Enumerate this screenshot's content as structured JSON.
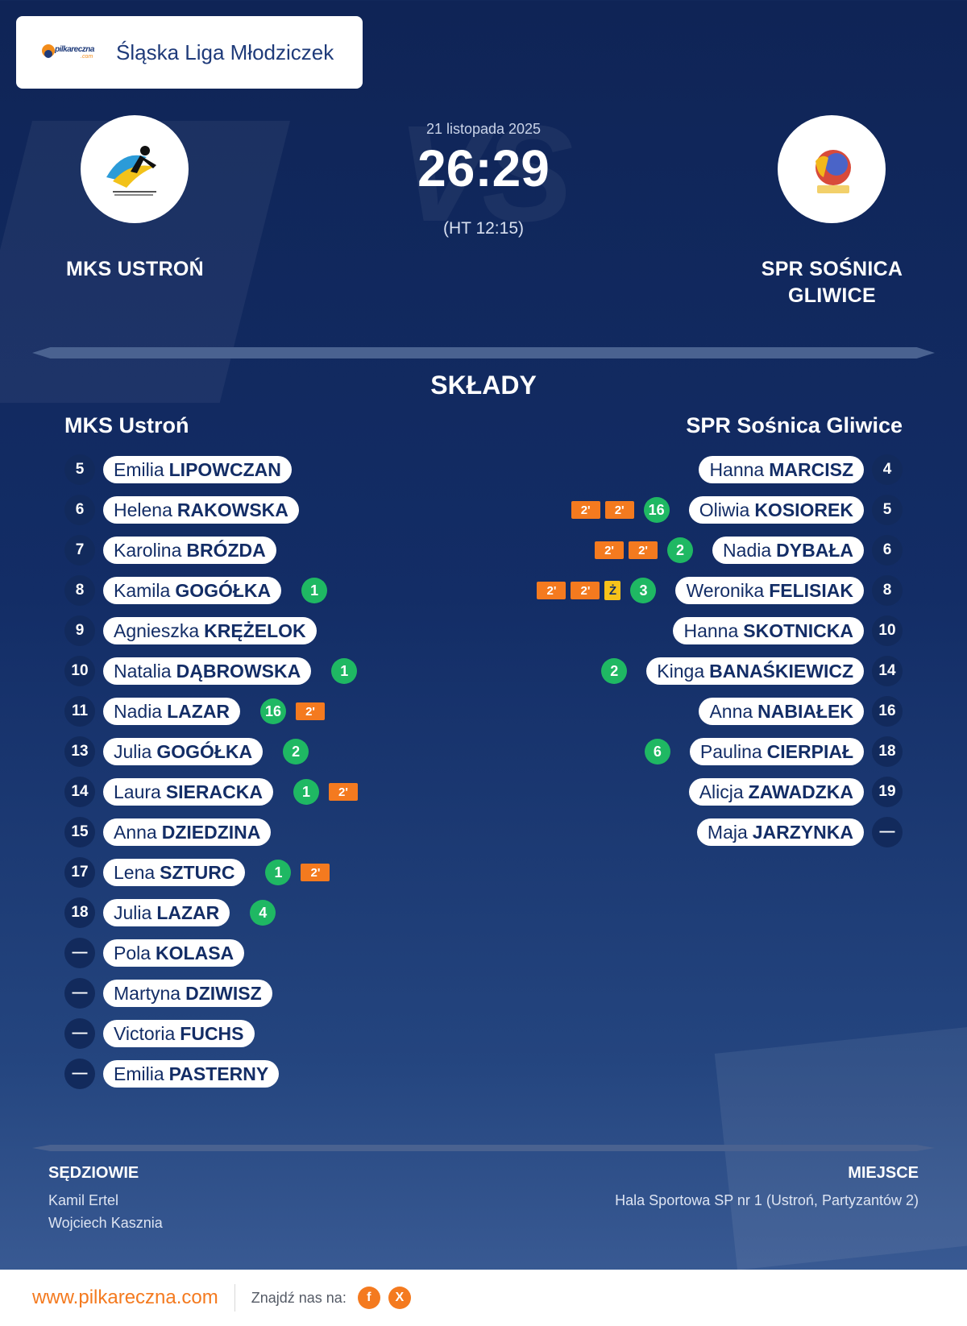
{
  "header": {
    "league_name": "Śląska Liga Młodziczek",
    "brand_text": "pilkareczna",
    "brand_suffix": ".com"
  },
  "match": {
    "date": "21 listopada 2025",
    "score": "26:29",
    "halftime": "(HT 12:15)",
    "vs_watermark": "VS",
    "home_team": "MKS USTROŃ",
    "away_team": "SPR SOŚNICA GLIWICE"
  },
  "lineups": {
    "title": "SKŁADY",
    "home_name": "MKS Ustroń",
    "away_name": "SPR Sośnica Gliwice",
    "home": [
      {
        "num": "5",
        "first": "Emilia",
        "last": "LIPOWCZAN",
        "goals": "",
        "yellow": "",
        "pens": []
      },
      {
        "num": "6",
        "first": "Helena",
        "last": "RAKOWSKA",
        "goals": "",
        "yellow": "",
        "pens": []
      },
      {
        "num": "7",
        "first": "Karolina",
        "last": "BRÓZDA",
        "goals": "",
        "yellow": "",
        "pens": []
      },
      {
        "num": "8",
        "first": "Kamila",
        "last": "GOGÓŁKA",
        "goals": "1",
        "yellow": "",
        "pens": []
      },
      {
        "num": "9",
        "first": "Agnieszka",
        "last": "KRĘŻELOK",
        "goals": "",
        "yellow": "",
        "pens": []
      },
      {
        "num": "10",
        "first": "Natalia",
        "last": "DĄBROWSKA",
        "goals": "1",
        "yellow": "",
        "pens": []
      },
      {
        "num": "11",
        "first": "Nadia",
        "last": "LAZAR",
        "goals": "16",
        "yellow": "",
        "pens": [
          "2'"
        ]
      },
      {
        "num": "13",
        "first": "Julia",
        "last": "GOGÓŁKA",
        "goals": "2",
        "yellow": "",
        "pens": []
      },
      {
        "num": "14",
        "first": "Laura",
        "last": "SIERACKA",
        "goals": "1",
        "yellow": "",
        "pens": [
          "2'"
        ]
      },
      {
        "num": "15",
        "first": "Anna",
        "last": "DZIEDZINA",
        "goals": "",
        "yellow": "",
        "pens": []
      },
      {
        "num": "17",
        "first": "Lena",
        "last": "SZTURC",
        "goals": "1",
        "yellow": "",
        "pens": [
          "2'"
        ]
      },
      {
        "num": "18",
        "first": "Julia",
        "last": "LAZAR",
        "goals": "4",
        "yellow": "",
        "pens": []
      },
      {
        "num": "—",
        "first": "Pola",
        "last": "KOLASA",
        "goals": "",
        "yellow": "",
        "pens": []
      },
      {
        "num": "—",
        "first": "Martyna",
        "last": "DZIWISZ",
        "goals": "",
        "yellow": "",
        "pens": []
      },
      {
        "num": "—",
        "first": "Victoria",
        "last": "FUCHS",
        "goals": "",
        "yellow": "",
        "pens": []
      },
      {
        "num": "—",
        "first": "Emilia",
        "last": "PASTERNY",
        "goals": "",
        "yellow": "",
        "pens": []
      }
    ],
    "away": [
      {
        "num": "4",
        "first": "Hanna",
        "last": "MARCISZ",
        "goals": "",
        "yellow": "",
        "pens": []
      },
      {
        "num": "5",
        "first": "Oliwia",
        "last": "KOSIOREK",
        "goals": "16",
        "yellow": "",
        "pens": [
          "2'",
          "2'"
        ]
      },
      {
        "num": "6",
        "first": "Nadia",
        "last": "DYBAŁA",
        "goals": "2",
        "yellow": "",
        "pens": [
          "2'",
          "2'"
        ]
      },
      {
        "num": "8",
        "first": "Weronika",
        "last": "FELISIAK",
        "goals": "3",
        "yellow": "Ż",
        "pens": [
          "2'",
          "2'"
        ]
      },
      {
        "num": "10",
        "first": "Hanna",
        "last": "SKOTNICKA",
        "goals": "",
        "yellow": "",
        "pens": []
      },
      {
        "num": "14",
        "first": "Kinga",
        "last": "BANAŚKIEWICZ",
        "goals": "2",
        "yellow": "",
        "pens": []
      },
      {
        "num": "16",
        "first": "Anna",
        "last": "NABIAŁEK",
        "goals": "",
        "yellow": "",
        "pens": []
      },
      {
        "num": "18",
        "first": "Paulina",
        "last": "CIERPIAŁ",
        "goals": "6",
        "yellow": "",
        "pens": []
      },
      {
        "num": "19",
        "first": "Alicja",
        "last": "ZAWADZKA",
        "goals": "",
        "yellow": "",
        "pens": []
      },
      {
        "num": "—",
        "first": "Maja",
        "last": "JARZYNKA",
        "goals": "",
        "yellow": "",
        "pens": []
      }
    ]
  },
  "officials": {
    "label": "SĘDZIOWIE",
    "referees": [
      "Kamil Ertel",
      "Wojciech Kasznia"
    ]
  },
  "venue": {
    "label": "MIEJSCE",
    "name": "Hala Sportowa SP nr 1 (Ustroń, Partyzantów 2)"
  },
  "footer": {
    "site": "www.pilkareczna.com",
    "find_us": "Znajdź nas na:",
    "social": [
      {
        "icon": "facebook-icon",
        "glyph": "f"
      },
      {
        "icon": "x-icon",
        "glyph": "X"
      }
    ]
  },
  "colors": {
    "background": "#132d66",
    "goal": "#1fb863",
    "penalty": "#f47a1f",
    "yellow_card": "#f7c21a",
    "brand_orange": "#f47a1f"
  }
}
